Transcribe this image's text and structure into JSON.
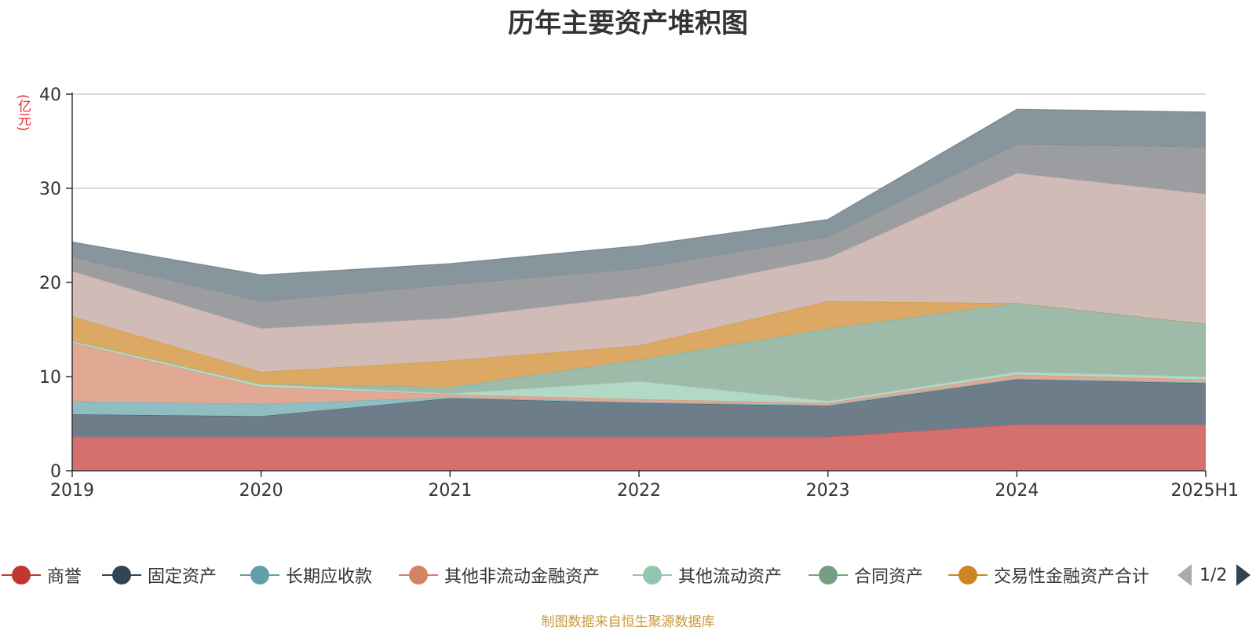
{
  "chart_data": {
    "type": "area",
    "stacked": true,
    "title": "历年主要资产堆积图",
    "unit_label": "(亿元)",
    "source": "制图数据来自恒生聚源数据库",
    "categories": [
      "2019",
      "2020",
      "2021",
      "2022",
      "2023",
      "2024",
      "2025H1"
    ],
    "ylim": [
      0,
      40
    ],
    "yticks": [
      "0",
      "10",
      "20",
      "30",
      "40"
    ],
    "grid": true,
    "legend_position": "bottom",
    "legend_page": "1/2",
    "series": [
      {
        "name": "商誉",
        "color": "#c23531",
        "fill": "#d4706d",
        "values": [
          3.6,
          3.6,
          3.6,
          3.6,
          3.6,
          4.9,
          4.9
        ]
      },
      {
        "name": "固定资产",
        "color": "#2f4554",
        "fill": "#6d7d89",
        "values": [
          2.4,
          2.2,
          4.1,
          3.6,
          3.3,
          4.8,
          4.4
        ]
      },
      {
        "name": "长期应收款",
        "color": "#61a0a8",
        "fill": "#90bdc2",
        "values": [
          1.4,
          1.3,
          0.1,
          0.1,
          0.1,
          0.1,
          0.1
        ]
      },
      {
        "name": "其他非流动金融资产",
        "color": "#d48265",
        "fill": "#e1a893",
        "values": [
          6.2,
          1.8,
          0.3,
          0.3,
          0.2,
          0.4,
          0.3
        ]
      },
      {
        "name": "其他流动资产",
        "color": "#91c7ae",
        "fill": "#b2d8c6",
        "values": [
          0.2,
          0.3,
          0.1,
          1.9,
          0.2,
          0.3,
          0.3
        ]
      },
      {
        "name": "合同资产",
        "color": "#749f83",
        "fill": "#9eba a8",
        "values": [
          0.0,
          0.0,
          0.7,
          2.3,
          7.7,
          7.3,
          5.6
        ]
      },
      {
        "name": "交易性金融资产合计",
        "color": "#ca8622",
        "fill": "#dba964",
        "values": [
          2.6,
          1.3,
          2.8,
          1.5,
          2.9,
          0.0,
          0.0
        ]
      },
      {
        "name": "",
        "color": "#bda29a",
        "fill": "#d0bbb6",
        "values": [
          4.8,
          4.6,
          4.5,
          5.3,
          4.6,
          13.8,
          13.8
        ]
      },
      {
        "name": "",
        "color": "#6e7074",
        "fill": "#9c9da0",
        "values": [
          1.5,
          2.9,
          3.6,
          2.9,
          2.3,
          3.1,
          5.0
        ]
      },
      {
        "name": "",
        "color": "#546570",
        "fill": "#87959d",
        "values": [
          1.6,
          2.8,
          2.2,
          2.4,
          1.8,
          3.7,
          3.7
        ]
      }
    ]
  }
}
